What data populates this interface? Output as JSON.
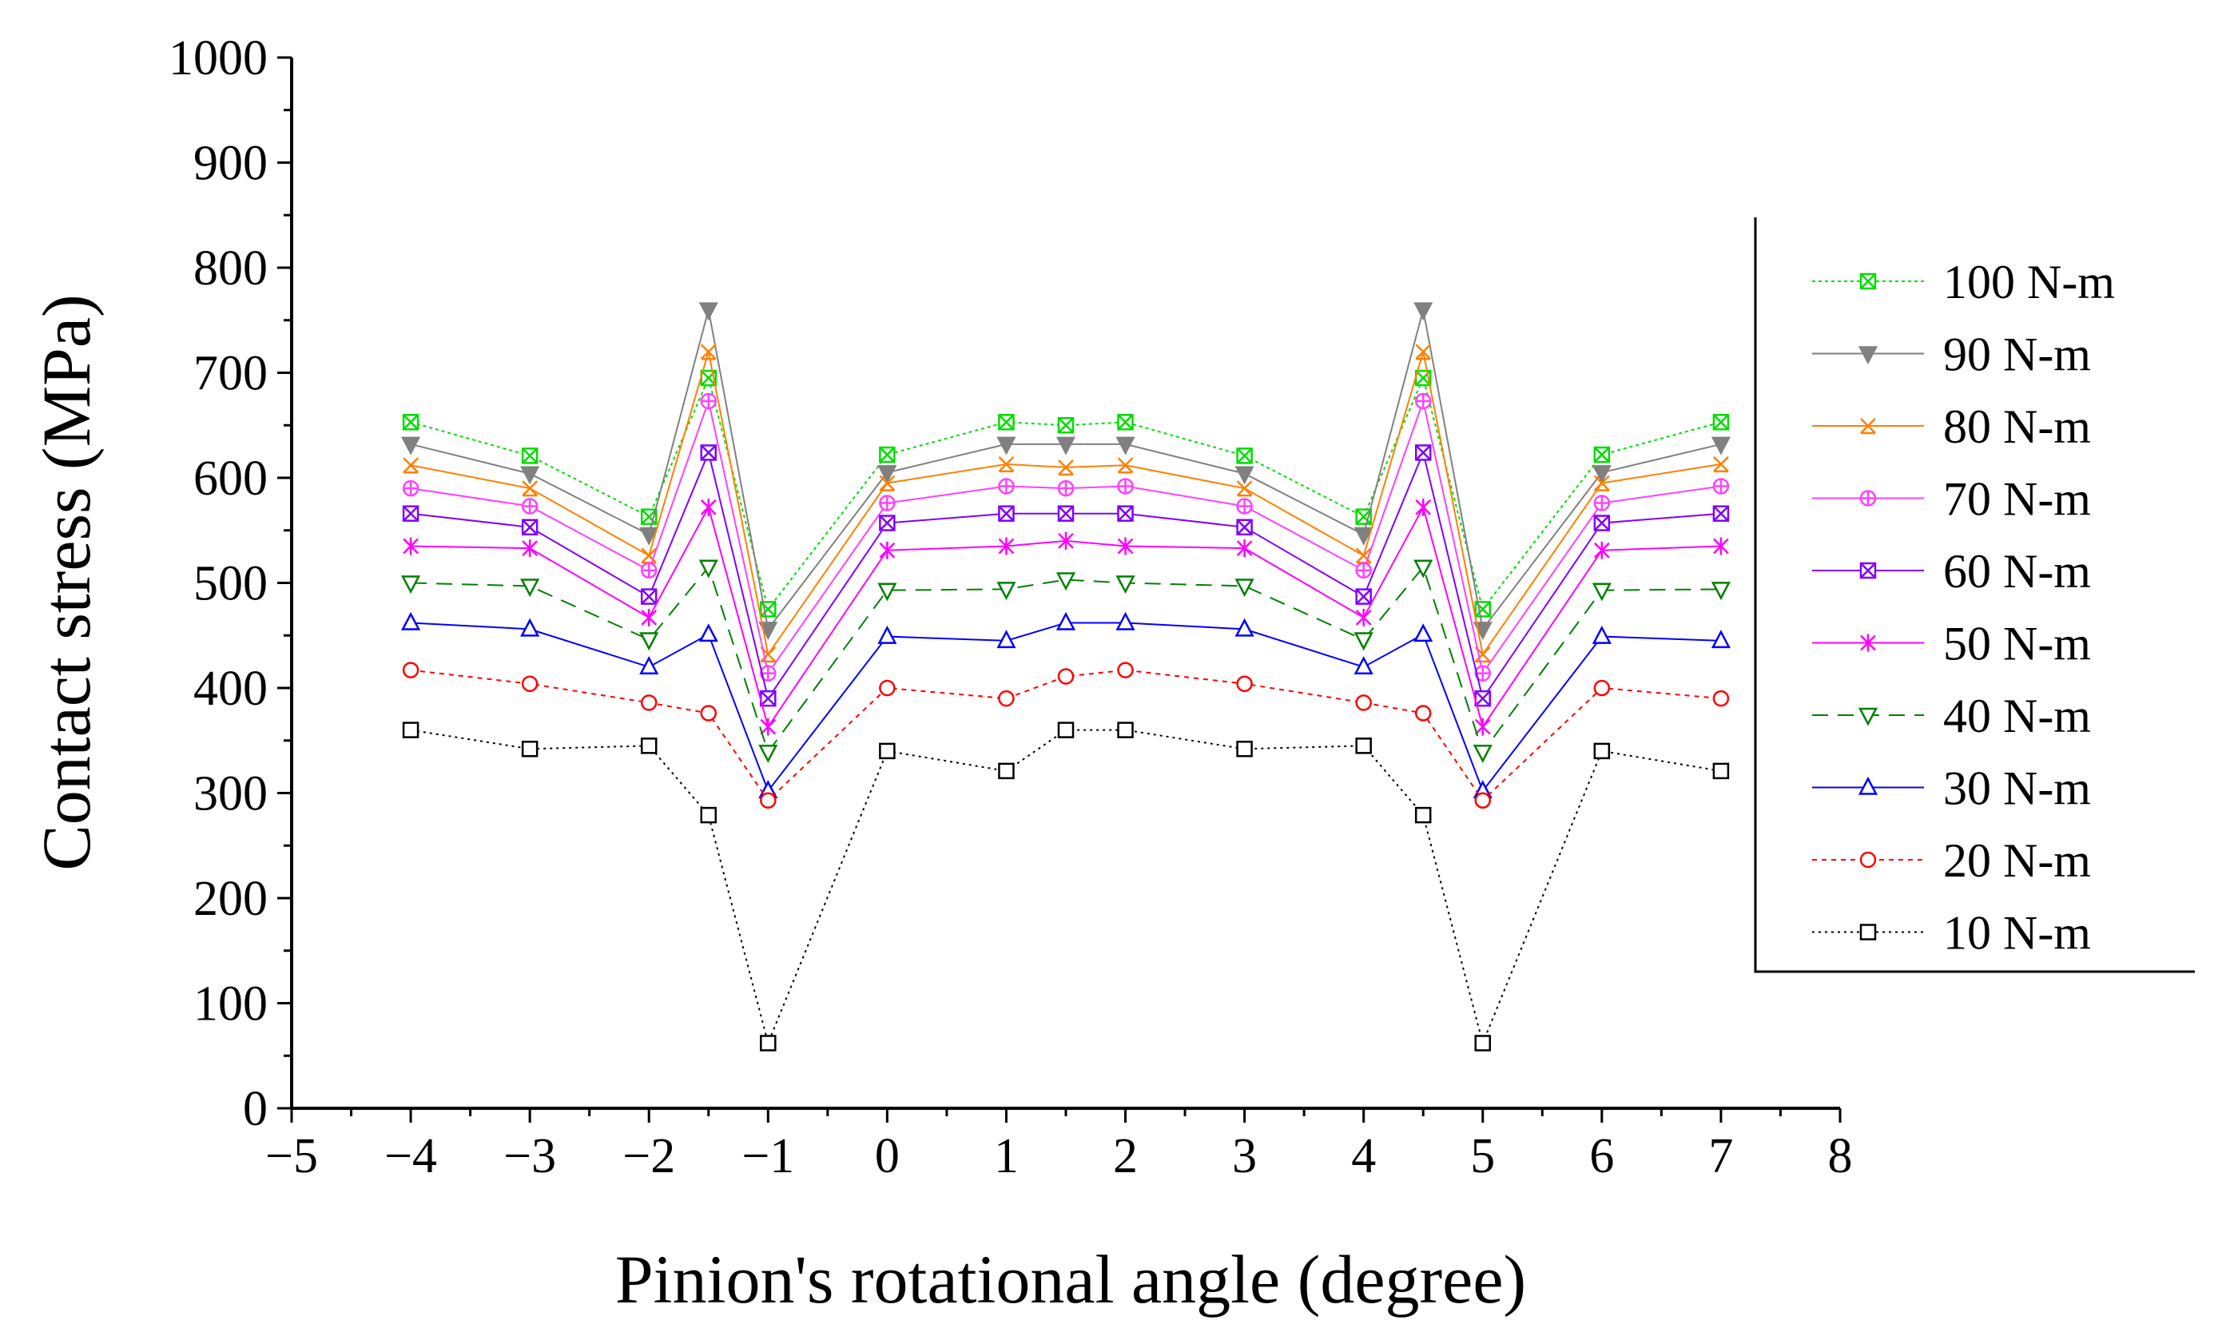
{
  "chart_data": {
    "type": "line",
    "title": "",
    "xlabel": "Pinion's rotational angle (degree)",
    "ylabel": "Contact stress (MPa)",
    "xlim": [
      -5,
      8
    ],
    "ylim": [
      0,
      1000
    ],
    "xticks": [
      -5,
      -4,
      -3,
      -2,
      -1,
      0,
      1,
      2,
      3,
      4,
      5,
      6,
      7,
      8
    ],
    "xtick_labels": [
      "−5",
      "−4",
      "−3",
      "−2",
      "−1",
      "0",
      "1",
      "2",
      "3",
      "4",
      "5",
      "6",
      "7",
      "8"
    ],
    "yticks": [
      0,
      100,
      200,
      300,
      400,
      500,
      600,
      700,
      800,
      900,
      1000
    ],
    "ytick_labels": [
      "0",
      "100",
      "200",
      "300",
      "400",
      "500",
      "600",
      "700",
      "800",
      "900",
      "1000"
    ],
    "legend_position": "right",
    "x": [
      -4,
      -3,
      -2,
      -1.5,
      -1,
      0,
      1,
      1.5,
      2,
      3,
      4,
      4.5,
      5,
      6,
      7
    ],
    "series": [
      {
        "name": "100 N-m",
        "color": "#00dd00",
        "marker": "square-x",
        "dash": "4 4",
        "values": [
          653,
          621,
          563,
          695,
          475,
          622,
          653,
          650,
          653,
          621,
          563,
          695,
          475,
          622,
          653
        ]
      },
      {
        "name": "90 N-m",
        "color": "#808080",
        "marker": "triangle-down-filled",
        "dash": "",
        "values": [
          632,
          604,
          546,
          760,
          456,
          605,
          632,
          632,
          632,
          604,
          546,
          760,
          456,
          605,
          632
        ]
      },
      {
        "name": "80 N-m",
        "color": "#ff8000",
        "marker": "x-triangle",
        "dash": "",
        "values": [
          612,
          590,
          526,
          720,
          432,
          595,
          613,
          610,
          612,
          590,
          526,
          720,
          432,
          595,
          613
        ]
      },
      {
        "name": "70 N-m",
        "color": "#ff40ff",
        "marker": "circle-plus",
        "dash": "",
        "values": [
          590,
          573,
          512,
          673,
          414,
          576,
          592,
          590,
          592,
          573,
          512,
          673,
          414,
          576,
          592
        ]
      },
      {
        "name": "60 N-m",
        "color": "#8000ff",
        "marker": "square-x",
        "dash": "",
        "values": [
          566,
          553,
          487,
          624,
          390,
          557,
          566,
          566,
          566,
          553,
          487,
          624,
          390,
          557,
          566
        ]
      },
      {
        "name": "50 N-m",
        "color": "#ff00ff",
        "marker": "asterisk",
        "dash": "",
        "values": [
          535,
          533,
          467,
          572,
          363,
          531,
          535,
          540,
          535,
          533,
          467,
          572,
          363,
          531,
          535
        ]
      },
      {
        "name": "40 N-m",
        "color": "#008000",
        "marker": "triangle-down",
        "dash": "20 12",
        "values": [
          500,
          497,
          446,
          515,
          339,
          493,
          494,
          503,
          500,
          497,
          446,
          515,
          339,
          493,
          494
        ]
      },
      {
        "name": "30 N-m",
        "color": "#0000ff",
        "marker": "triangle-up",
        "dash": "",
        "values": [
          462,
          456,
          420,
          451,
          302,
          449,
          445,
          462,
          462,
          456,
          420,
          451,
          302,
          449,
          445
        ]
      },
      {
        "name": "20 N-m",
        "color": "#ff0000",
        "marker": "circle",
        "dash": "6 6",
        "values": [
          417,
          404,
          386,
          376,
          293,
          400,
          390,
          411,
          417,
          404,
          386,
          376,
          293,
          400,
          390
        ]
      },
      {
        "name": "10 N-m",
        "color": "#000000",
        "marker": "square",
        "dash": "3 5",
        "values": [
          360,
          342,
          345,
          279,
          62,
          340,
          321,
          360,
          360,
          342,
          345,
          279,
          62,
          340,
          321
        ]
      }
    ]
  }
}
